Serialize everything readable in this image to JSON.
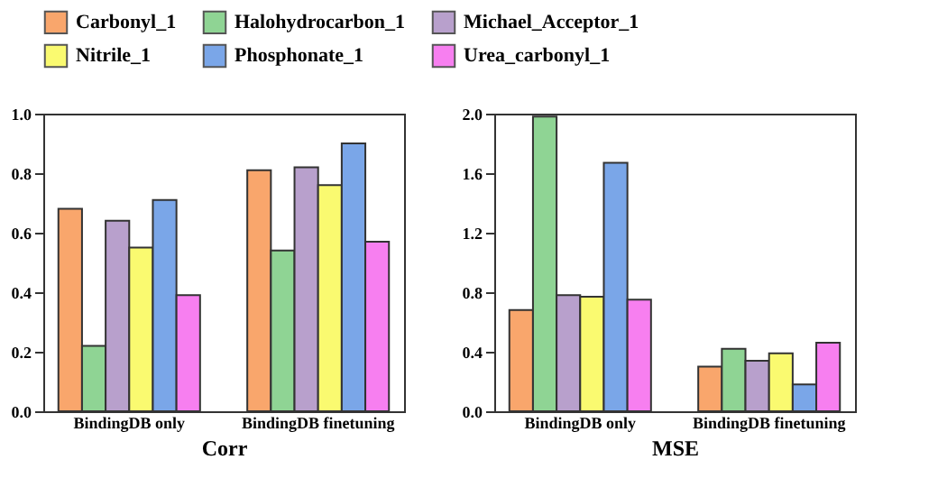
{
  "chart_data": [
    {
      "type": "bar",
      "xlabel": "Corr",
      "categories": [
        "BindingDB only",
        "BindingDB finetuning"
      ],
      "ylim": [
        0,
        1
      ],
      "yticks": [
        {
          "value": 0,
          "label": "0.0"
        },
        0.2,
        0.4,
        0.6,
        0.8,
        {
          "value": 1,
          "label": "1.0"
        }
      ],
      "grid": false,
      "legend": "top",
      "series": [
        {
          "name": "Carbonyl_1",
          "color": "#f9a66c",
          "values": [
            0.68,
            0.81
          ]
        },
        {
          "name": "Halohydrocarbon_1",
          "color": "#8fd494",
          "values": [
            0.22,
            0.54
          ]
        },
        {
          "name": "Michael_Acceptor_1",
          "color": "#b8a0cc",
          "values": [
            0.64,
            0.82
          ]
        },
        {
          "name": "Nitrile_1",
          "color": "#fafa70",
          "values": [
            0.55,
            0.76
          ]
        },
        {
          "name": "Phosphonate_1",
          "color": "#7aa6e8",
          "values": [
            0.71,
            0.9
          ]
        },
        {
          "name": "Urea_carbonyl_1",
          "color": "#f77ff0",
          "values": [
            0.39,
            0.57
          ]
        }
      ]
    },
    {
      "type": "bar",
      "xlabel": "MSE",
      "categories": [
        "BindingDB only",
        "BindingDB finetuning"
      ],
      "ylim": [
        0,
        2
      ],
      "yticks": [
        {
          "value": 0,
          "label": "0.0"
        },
        0.4,
        0.8,
        1.2,
        1.6,
        {
          "value": 2,
          "label": "2.0"
        }
      ],
      "grid": false,
      "legend": "top",
      "series": [
        {
          "name": "Carbonyl_1",
          "color": "#f9a66c",
          "values": [
            0.68,
            0.3
          ]
        },
        {
          "name": "Halohydrocarbon_1",
          "color": "#8fd494",
          "values": [
            1.98,
            0.42
          ]
        },
        {
          "name": "Michael_Acceptor_1",
          "color": "#b8a0cc",
          "values": [
            0.78,
            0.34
          ]
        },
        {
          "name": "Nitrile_1",
          "color": "#fafa70",
          "values": [
            0.77,
            0.39
          ]
        },
        {
          "name": "Phosphonate_1",
          "color": "#7aa6e8",
          "values": [
            1.67,
            0.18
          ]
        },
        {
          "name": "Urea_carbonyl_1",
          "color": "#f77ff0",
          "values": [
            0.75,
            0.46
          ]
        }
      ]
    }
  ]
}
